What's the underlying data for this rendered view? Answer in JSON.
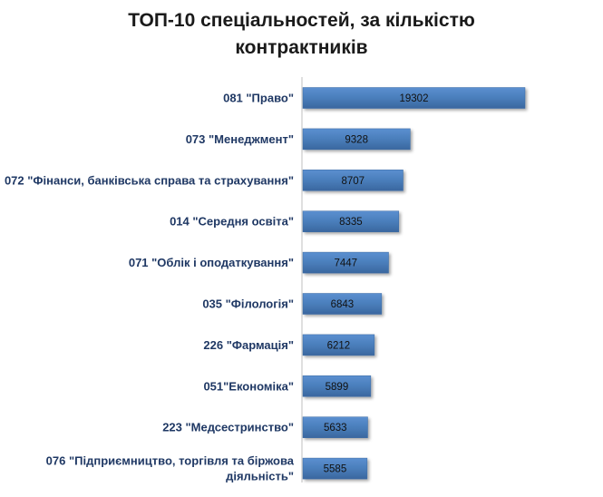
{
  "chart_data": {
    "type": "bar",
    "orientation": "horizontal",
    "title": "ТОП-10 спеціальностей, за кількістю контрактників",
    "title_lines": [
      "ТОП-10 спеціальностей, за кількістю",
      "контрактників"
    ],
    "categories": [
      "081 \"Право\"",
      "073 \"Менеджмент\"",
      "072 \"Фінанси, банківська справа та страхування\"",
      "014 \"Середня освіта\"",
      "071 \"Облік і оподаткування\"",
      "035 \"Філологія\"",
      "226 \"Фармація\"",
      "051\"Економіка\"",
      "223 \"Медсестринство\"",
      "076 \"Підприємництво, торгівля та біржова діяльність\""
    ],
    "category_lines": [
      [
        "081 \"Право\""
      ],
      [
        "073 \"Менеджмент\""
      ],
      [
        "072 \"Фінанси, банківська справа та страхування\""
      ],
      [
        "014 \"Середня освіта\""
      ],
      [
        "071 \"Облік і оподаткування\""
      ],
      [
        "035 \"Філологія\""
      ],
      [
        "226 \"Фармація\""
      ],
      [
        "051\"Економіка\""
      ],
      [
        "223 \"Медсестринство\""
      ],
      [
        "076 \"Підприємництво, торгівля та біржова",
        "діяльність\""
      ]
    ],
    "values": [
      19302,
      9328,
      8707,
      8335,
      7447,
      6843,
      6212,
      5899,
      5633,
      5585
    ],
    "value_labels": [
      "19302",
      "9328",
      "8707",
      "8335",
      "7447",
      "6843",
      "6212",
      "5899",
      "5633",
      "5585"
    ],
    "xlim": [
      0,
      20000
    ],
    "grid": false,
    "legend": "none",
    "colors": {
      "bar": "#4a7ebb",
      "bar_dark": "#3b6aa3",
      "label": "#1f3864"
    }
  }
}
